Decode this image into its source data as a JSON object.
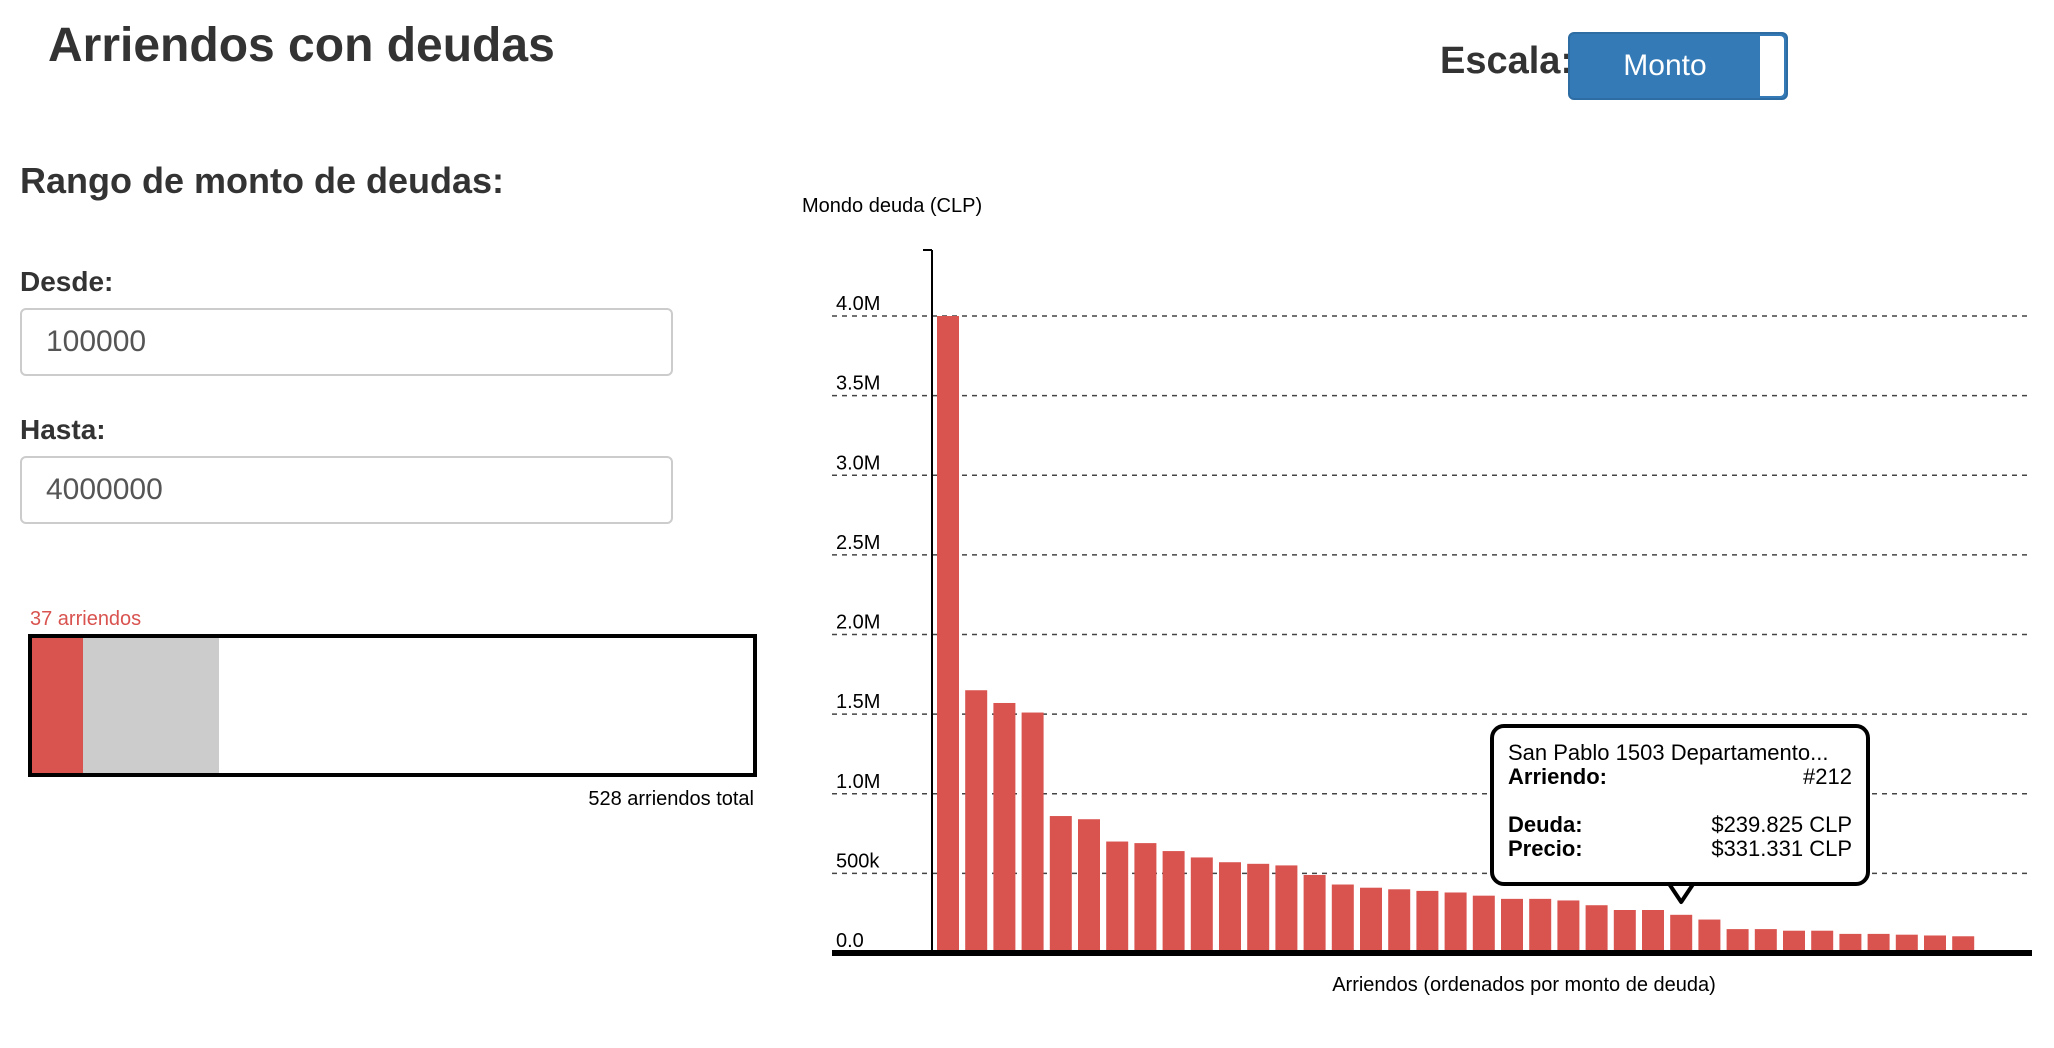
{
  "header": {
    "title": "Arriendos con deudas",
    "scale_label": "Escala:",
    "scale_toggle": "Monto"
  },
  "filters": {
    "title": "Rango de monto de deudas:",
    "from_label": "Desde:",
    "from_value": "100000",
    "to_label": "Hasta:",
    "to_value": "4000000"
  },
  "summary": {
    "count_label": "37 arriendos",
    "total_label": "528 arriendos total",
    "filtered_count": 37,
    "total_count": 528,
    "range_end_fraction": 0.26,
    "colors": {
      "filtered": "#d9534f",
      "range": "#cccccc"
    }
  },
  "tooltip": {
    "title": "San Pablo 1503 Departamento...",
    "arriendo_label": "Arriendo:",
    "arriendo_value": "#212",
    "deuda_label": "Deuda:",
    "deuda_value": "$239.825 CLP",
    "precio_label": "Precio:",
    "precio_value": "$331.331 CLP",
    "bar_index": 26
  },
  "chart_data": {
    "type": "bar",
    "ylabel": "Mondo deuda (CLP)",
    "xlabel": "Arriendos (ordenados por monto de deuda)",
    "ylim": [
      0,
      4000000
    ],
    "yticks": [
      0,
      500000,
      1000000,
      1500000,
      2000000,
      2500000,
      3000000,
      3500000,
      4000000
    ],
    "ytick_labels": [
      "0.0",
      "500k",
      "1.0M",
      "1.5M",
      "2.0M",
      "2.5M",
      "3.0M",
      "3.5M",
      "4.0M"
    ],
    "grid": true,
    "bar_color": "#d9534f",
    "values": [
      4000000,
      1650000,
      1570000,
      1510000,
      860000,
      840000,
      700000,
      690000,
      640000,
      600000,
      570000,
      560000,
      550000,
      490000,
      430000,
      410000,
      400000,
      390000,
      380000,
      360000,
      340000,
      340000,
      330000,
      300000,
      270000,
      270000,
      239825,
      210000,
      150000,
      150000,
      140000,
      140000,
      120000,
      120000,
      115000,
      110000,
      105000
    ]
  }
}
